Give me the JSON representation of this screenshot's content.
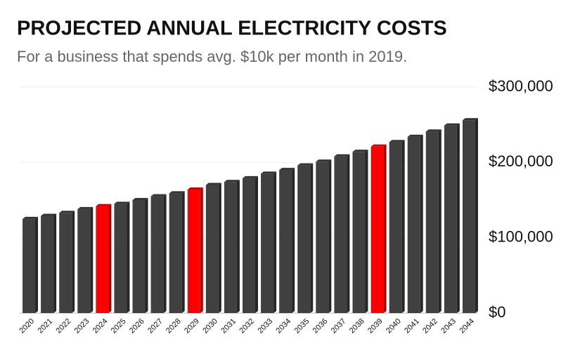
{
  "chart_data": {
    "type": "bar",
    "title": "PROJECTED ANNUAL ELECTRICITY COSTS",
    "subtitle": "For a business that spends avg. $10k per month in 2019.",
    "categories": [
      "2020",
      "2021",
      "2022",
      "2023",
      "2024",
      "2025",
      "2026",
      "2027",
      "2028",
      "2029",
      "2030",
      "2031",
      "2032",
      "2033",
      "2034",
      "2035",
      "2036",
      "2037",
      "2038",
      "2039",
      "2040",
      "2041",
      "2042",
      "2043",
      "2044"
    ],
    "values": [
      125000,
      129000,
      133000,
      138000,
      142000,
      145000,
      150000,
      155000,
      159000,
      164000,
      170000,
      174000,
      179000,
      185000,
      190000,
      196000,
      201000,
      208000,
      214000,
      221000,
      227000,
      234000,
      241000,
      249000,
      256000
    ],
    "colors": [
      "#404040",
      "#404040",
      "#404040",
      "#404040",
      "#ff0000",
      "#404040",
      "#404040",
      "#404040",
      "#404040",
      "#ff0000",
      "#404040",
      "#404040",
      "#404040",
      "#404040",
      "#404040",
      "#404040",
      "#404040",
      "#404040",
      "#404040",
      "#ff0000",
      "#404040",
      "#404040",
      "#404040",
      "#404040",
      "#404040"
    ],
    "ylim": [
      0,
      300000
    ],
    "yticks": [
      {
        "value": 0,
        "label": "$0"
      },
      {
        "value": 100000,
        "label": "$100,000"
      },
      {
        "value": 200000,
        "label": "$200,000"
      },
      {
        "value": 300000,
        "label": "$300,000"
      }
    ],
    "grid": true,
    "yaxis_side": "right"
  }
}
